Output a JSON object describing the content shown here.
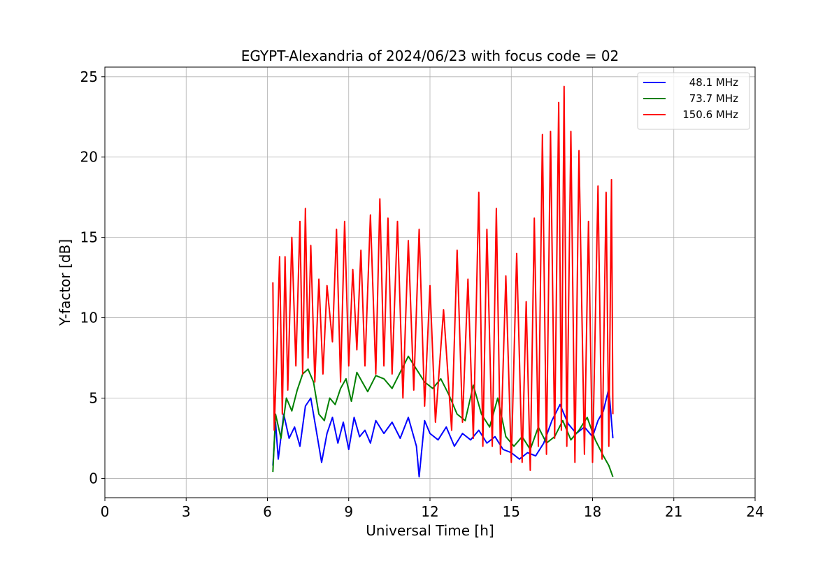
{
  "chart_data": {
    "type": "line",
    "title": "EGYPT-Alexandria of 2024/06/23 with focus code = 02",
    "xlabel": "Universal Time [h]",
    "ylabel": "Y-factor [dB]",
    "xlim": [
      0,
      24
    ],
    "ylim": [
      -1.2,
      25.6
    ],
    "xticks": [
      0,
      3,
      6,
      9,
      12,
      15,
      18,
      21,
      24
    ],
    "yticks": [
      0,
      5,
      10,
      15,
      20,
      25
    ],
    "grid": true,
    "legend_position": "top-right",
    "series": [
      {
        "name": "48.1 MHz",
        "color": "#0000ff",
        "x": [
          6.2,
          6.3,
          6.4,
          6.6,
          6.8,
          7.0,
          7.2,
          7.4,
          7.6,
          7.8,
          8.0,
          8.2,
          8.4,
          8.6,
          8.8,
          9.0,
          9.2,
          9.4,
          9.6,
          9.8,
          10.0,
          10.3,
          10.6,
          10.9,
          11.2,
          11.5,
          11.6,
          11.8,
          12.0,
          12.3,
          12.6,
          12.9,
          13.2,
          13.5,
          13.8,
          14.1,
          14.4,
          14.7,
          15.0,
          15.3,
          15.6,
          15.9,
          16.2,
          16.5,
          16.8,
          17.1,
          17.4,
          17.7,
          18.0,
          18.2,
          18.4,
          18.6,
          18.75
        ],
        "y": [
          0.8,
          3.5,
          1.2,
          4.0,
          2.5,
          3.2,
          2.0,
          4.5,
          5.0,
          3.0,
          1.0,
          2.8,
          3.8,
          2.2,
          3.5,
          1.8,
          3.8,
          2.6,
          3.0,
          2.2,
          3.6,
          2.8,
          3.5,
          2.5,
          3.8,
          2.0,
          0.1,
          3.6,
          2.8,
          2.4,
          3.2,
          2.0,
          2.8,
          2.4,
          3.0,
          2.2,
          2.6,
          1.8,
          1.6,
          1.2,
          1.6,
          1.4,
          2.2,
          3.6,
          4.6,
          3.4,
          2.8,
          3.2,
          2.6,
          3.6,
          4.2,
          5.6,
          2.5
        ]
      },
      {
        "name": "73.7 MHz",
        "color": "#008000",
        "x": [
          6.2,
          6.3,
          6.5,
          6.7,
          6.9,
          7.1,
          7.3,
          7.5,
          7.7,
          7.9,
          8.1,
          8.3,
          8.5,
          8.7,
          8.9,
          9.1,
          9.3,
          9.5,
          9.7,
          10.0,
          10.3,
          10.6,
          10.9,
          11.2,
          11.5,
          11.8,
          12.1,
          12.4,
          12.7,
          13.0,
          13.3,
          13.6,
          13.9,
          14.2,
          14.5,
          14.8,
          15.1,
          15.4,
          15.7,
          16.0,
          16.3,
          16.6,
          16.9,
          17.2,
          17.5,
          17.8,
          18.1,
          18.4,
          18.6,
          18.75
        ],
        "y": [
          0.4,
          4.0,
          2.5,
          5.0,
          4.2,
          5.5,
          6.5,
          6.8,
          6.0,
          4.0,
          3.6,
          5.0,
          4.6,
          5.6,
          6.2,
          4.8,
          6.6,
          6.0,
          5.4,
          6.4,
          6.2,
          5.6,
          6.6,
          7.6,
          6.8,
          6.0,
          5.6,
          6.2,
          5.2,
          4.0,
          3.6,
          5.8,
          4.0,
          3.2,
          5.0,
          2.6,
          2.0,
          2.6,
          1.8,
          3.2,
          2.2,
          2.6,
          3.6,
          2.4,
          3.0,
          3.8,
          2.4,
          1.4,
          0.8,
          0.1
        ]
      },
      {
        "name": "150.6 MHz",
        "color": "#ff0000",
        "x": [
          6.2,
          6.25,
          6.35,
          6.45,
          6.55,
          6.65,
          6.75,
          6.9,
          7.05,
          7.2,
          7.3,
          7.4,
          7.5,
          7.6,
          7.75,
          7.9,
          8.05,
          8.2,
          8.4,
          8.55,
          8.7,
          8.85,
          9.0,
          9.15,
          9.3,
          9.45,
          9.6,
          9.8,
          10.0,
          10.15,
          10.3,
          10.45,
          10.6,
          10.8,
          11.0,
          11.2,
          11.4,
          11.6,
          11.8,
          12.0,
          12.2,
          12.5,
          12.8,
          13.0,
          13.2,
          13.4,
          13.6,
          13.8,
          13.95,
          14.1,
          14.3,
          14.45,
          14.6,
          14.8,
          15.0,
          15.2,
          15.4,
          15.55,
          15.7,
          15.85,
          16.0,
          16.15,
          16.3,
          16.45,
          16.6,
          16.75,
          16.85,
          16.95,
          17.05,
          17.2,
          17.35,
          17.5,
          17.7,
          17.85,
          18.0,
          18.2,
          18.35,
          18.5,
          18.6,
          18.7,
          18.75
        ],
        "y": [
          12.2,
          3.0,
          8.0,
          13.8,
          4.0,
          13.8,
          5.5,
          15.0,
          7.0,
          16.0,
          6.5,
          16.8,
          7.5,
          14.5,
          6.0,
          12.4,
          6.5,
          12.0,
          8.5,
          15.5,
          6.0,
          16.0,
          7.0,
          13.0,
          8.0,
          14.2,
          7.0,
          16.4,
          6.5,
          17.4,
          7.0,
          16.2,
          6.5,
          16.0,
          5.0,
          14.8,
          5.5,
          15.5,
          4.5,
          12.0,
          3.5,
          10.5,
          3.0,
          14.2,
          3.5,
          12.4,
          2.5,
          17.8,
          2.0,
          15.5,
          2.0,
          16.8,
          1.5,
          12.6,
          1.0,
          14.0,
          1.0,
          11.0,
          0.5,
          16.2,
          2.0,
          21.4,
          1.5,
          21.6,
          2.5,
          23.4,
          3.0,
          24.4,
          2.0,
          21.6,
          1.0,
          20.4,
          1.5,
          16.0,
          1.0,
          18.2,
          1.2,
          17.8,
          2.0,
          18.6,
          4.0
        ]
      }
    ]
  }
}
